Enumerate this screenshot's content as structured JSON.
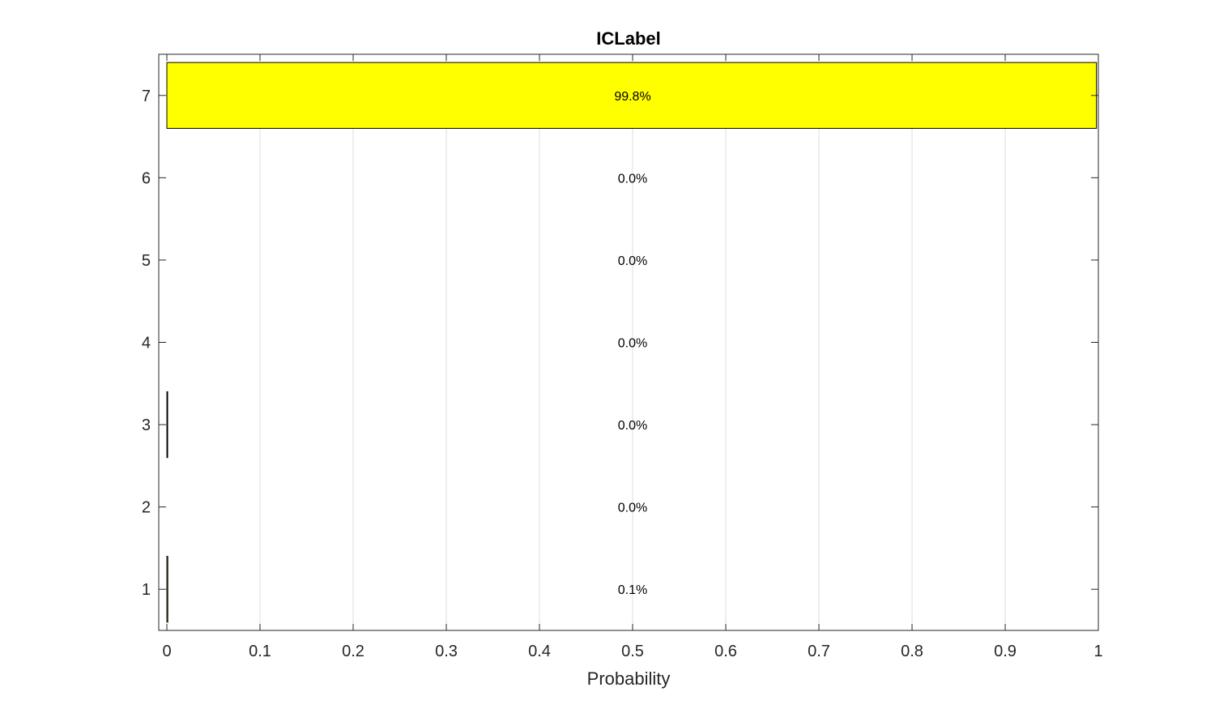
{
  "chart_data": {
    "type": "bar",
    "orientation": "horizontal",
    "title": "ICLabel",
    "xlabel": "Probability",
    "ylabel": "",
    "xlim": [
      0,
      1
    ],
    "ylim": [
      0.5,
      7.5
    ],
    "xticks": [
      "0",
      "0.1",
      "0.2",
      "0.3",
      "0.4",
      "0.5",
      "0.6",
      "0.7",
      "0.8",
      "0.9",
      "1"
    ],
    "categories": [
      "1",
      "2",
      "3",
      "4",
      "5",
      "6",
      "7"
    ],
    "values": [
      0.001,
      0.0,
      0.0005,
      0.0,
      0.0,
      0.0,
      0.998
    ],
    "labels": [
      "0.1%",
      "0.0%",
      "0.0%",
      "0.0%",
      "0.0%",
      "0.0%",
      "99.8%"
    ],
    "bar_color": "#ffff00",
    "bar_edge_color": "#000000",
    "grid": "vertical",
    "grid_color": "#dcdcdc"
  }
}
